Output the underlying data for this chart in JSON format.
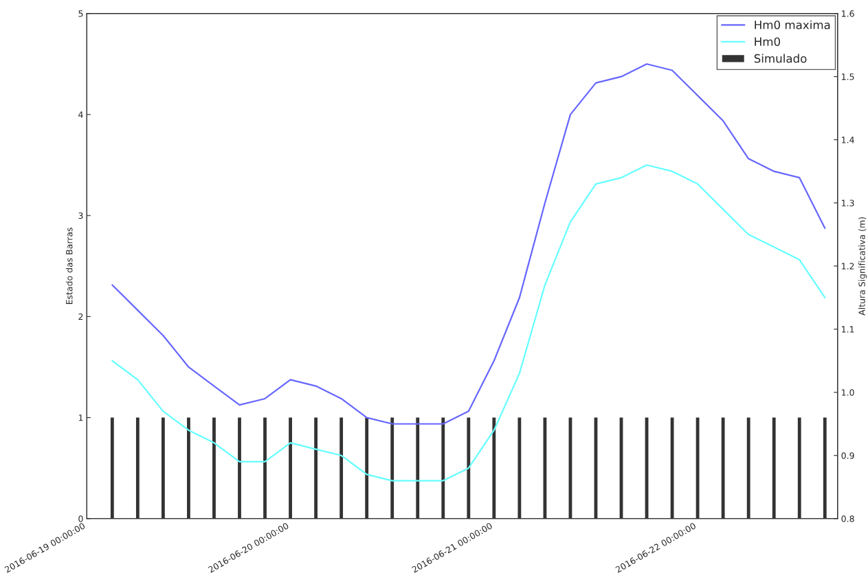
{
  "chart_data": {
    "type": "line",
    "xlabel": null,
    "ylabel": "Estado das Barras",
    "y2label": "Altura Significativa (m)",
    "x": [
      "2016-06-19T03:00",
      "2016-06-19T06:00",
      "2016-06-19T09:00",
      "2016-06-19T12:00",
      "2016-06-19T15:00",
      "2016-06-19T18:00",
      "2016-06-19T21:00",
      "2016-06-20T00:00",
      "2016-06-20T03:00",
      "2016-06-20T06:00",
      "2016-06-20T09:00",
      "2016-06-20T12:00",
      "2016-06-20T15:00",
      "2016-06-20T18:00",
      "2016-06-20T21:00",
      "2016-06-21T00:00",
      "2016-06-21T03:00",
      "2016-06-21T06:00",
      "2016-06-21T09:00",
      "2016-06-21T12:00",
      "2016-06-21T15:00",
      "2016-06-21T18:00",
      "2016-06-21T21:00",
      "2016-06-22T00:00",
      "2016-06-22T03:00",
      "2016-06-22T06:00",
      "2016-06-22T09:00",
      "2016-06-22T12:00",
      "2016-06-22T15:00"
    ],
    "series": [
      {
        "name": "Hm0 maxima",
        "axis": "y2",
        "color": "#6666ff",
        "values": [
          1.17,
          1.13,
          1.09,
          1.04,
          1.01,
          0.98,
          0.99,
          1.02,
          1.01,
          0.99,
          0.96,
          0.95,
          0.95,
          0.95,
          0.97,
          1.05,
          1.15,
          1.3,
          1.44,
          1.49,
          1.5,
          1.52,
          1.51,
          1.47,
          1.43,
          1.37,
          1.35,
          1.34,
          1.26
        ]
      },
      {
        "name": "Hm0",
        "axis": "y2",
        "color": "#66ffff",
        "values": [
          1.05,
          1.02,
          0.97,
          0.94,
          0.92,
          0.89,
          0.89,
          0.92,
          0.91,
          0.9,
          0.87,
          0.86,
          0.86,
          0.86,
          0.88,
          0.94,
          1.03,
          1.17,
          1.27,
          1.33,
          1.34,
          1.36,
          1.35,
          1.33,
          1.29,
          1.25,
          1.23,
          1.21,
          1.15
        ]
      },
      {
        "name": "Simulado",
        "type": "bar",
        "axis": "y",
        "color": "#333333",
        "values": [
          1,
          1,
          1,
          1,
          1,
          1,
          1,
          1,
          1,
          1,
          1,
          1,
          1,
          1,
          1,
          1,
          1,
          1,
          1,
          1,
          1,
          1,
          1,
          1,
          1,
          1,
          1,
          1,
          1
        ]
      }
    ],
    "xlim": [
      "2016-06-19T00:00",
      "2016-06-22T16:30"
    ],
    "xticks": [
      {
        "value": "2016-06-19",
        "label": "2016-06-19 00:00:00"
      },
      {
        "value": "2016-06-20",
        "label": "2016-06-20 00:00:00"
      },
      {
        "value": "2016-06-21",
        "label": "2016-06-21 00:00:00"
      },
      {
        "value": "2016-06-22",
        "label": "2016-06-22 00:00:00"
      }
    ],
    "ylim": [
      0,
      5
    ],
    "yticks": [
      0,
      1,
      2,
      3,
      4,
      5
    ],
    "y2lim": [
      0.8,
      1.6
    ],
    "y2ticks": [
      {
        "value": 0.8,
        "label": "0.8"
      },
      {
        "value": 0.9,
        "label": "0.9"
      },
      {
        "value": 1.0,
        "label": "1.0"
      },
      {
        "value": 1.1,
        "label": "1.1"
      },
      {
        "value": 1.2,
        "label": "1.2"
      },
      {
        "value": 1.3,
        "label": "1.3"
      },
      {
        "value": 1.4,
        "label": "1.4"
      },
      {
        "value": 1.5,
        "label": "1.5"
      },
      {
        "value": 1.6,
        "label": "1.6"
      }
    ],
    "legend": "top right",
    "grid": false
  }
}
